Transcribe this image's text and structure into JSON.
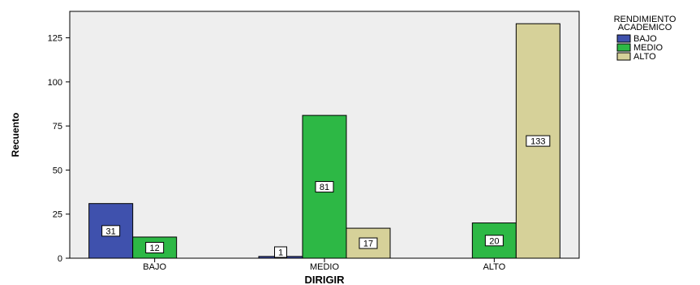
{
  "chart_data": {
    "type": "bar",
    "xlabel": "DIRIGIR",
    "ylabel": "Recuento",
    "categories": [
      "BAJO",
      "MEDIO",
      "ALTO"
    ],
    "ylim": [
      0,
      140
    ],
    "yticks": [
      0,
      25,
      50,
      75,
      100,
      125
    ],
    "legend": {
      "title_lines": [
        "RENDIMIENTO",
        "ACADEMICO"
      ],
      "position": "top-right",
      "entries": [
        "BAJO",
        "MEDIO",
        "ALTO"
      ]
    },
    "series": [
      {
        "name": "BAJO",
        "color": "#3f51ad",
        "values": [
          31,
          1,
          null
        ]
      },
      {
        "name": "MEDIO",
        "color": "#2db845",
        "values": [
          12,
          81,
          20
        ]
      },
      {
        "name": "ALTO",
        "color": "#d6d199",
        "values": [
          null,
          17,
          133
        ]
      }
    ],
    "plot_background": "#eeeeee",
    "grid": false
  }
}
